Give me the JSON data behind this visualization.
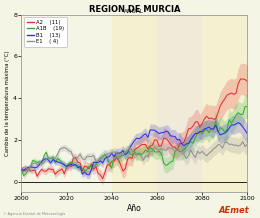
{
  "title": "REGION DE MURCIA",
  "subtitle": "ANUAL",
  "xlabel": "Año",
  "ylabel": "Cambio de la temperatura máxima (°C)",
  "xlim": [
    2000,
    2100
  ],
  "ylim": [
    -0.5,
    8
  ],
  "yticks": [
    0,
    2,
    4,
    6,
    8
  ],
  "xticks": [
    2000,
    2020,
    2040,
    2060,
    2080,
    2100
  ],
  "bg_color": "#f5f5e6",
  "highlight1_start": 2040,
  "highlight1_end": 2060,
  "highlight1_color": "#f5f0d0",
  "highlight2_start": 2060,
  "highlight2_end": 2080,
  "highlight2_color": "#f0ead8",
  "highlight3_start": 2080,
  "highlight3_end": 2100,
  "highlight3_color": "#f5f0d0",
  "scenarios": [
    {
      "name": "A2",
      "count": 11,
      "color": "#e03030",
      "final_mean": 4.8,
      "final_spread": 0.65,
      "noise_scale": 0.18
    },
    {
      "name": "A1B",
      "count": 19,
      "color": "#30b030",
      "final_mean": 3.6,
      "final_spread": 0.45,
      "noise_scale": 0.16
    },
    {
      "name": "B1",
      "count": 13,
      "color": "#3030e0",
      "final_mean": 2.3,
      "final_spread": 0.35,
      "noise_scale": 0.14
    },
    {
      "name": "E1",
      "count": 4,
      "color": "#909090",
      "final_mean": 1.8,
      "final_spread": 0.28,
      "noise_scale": 0.13
    }
  ],
  "seed": 7,
  "start_year": 2000,
  "end_year": 2100,
  "footer_text": "© Agencia Estatal de Meteorología"
}
